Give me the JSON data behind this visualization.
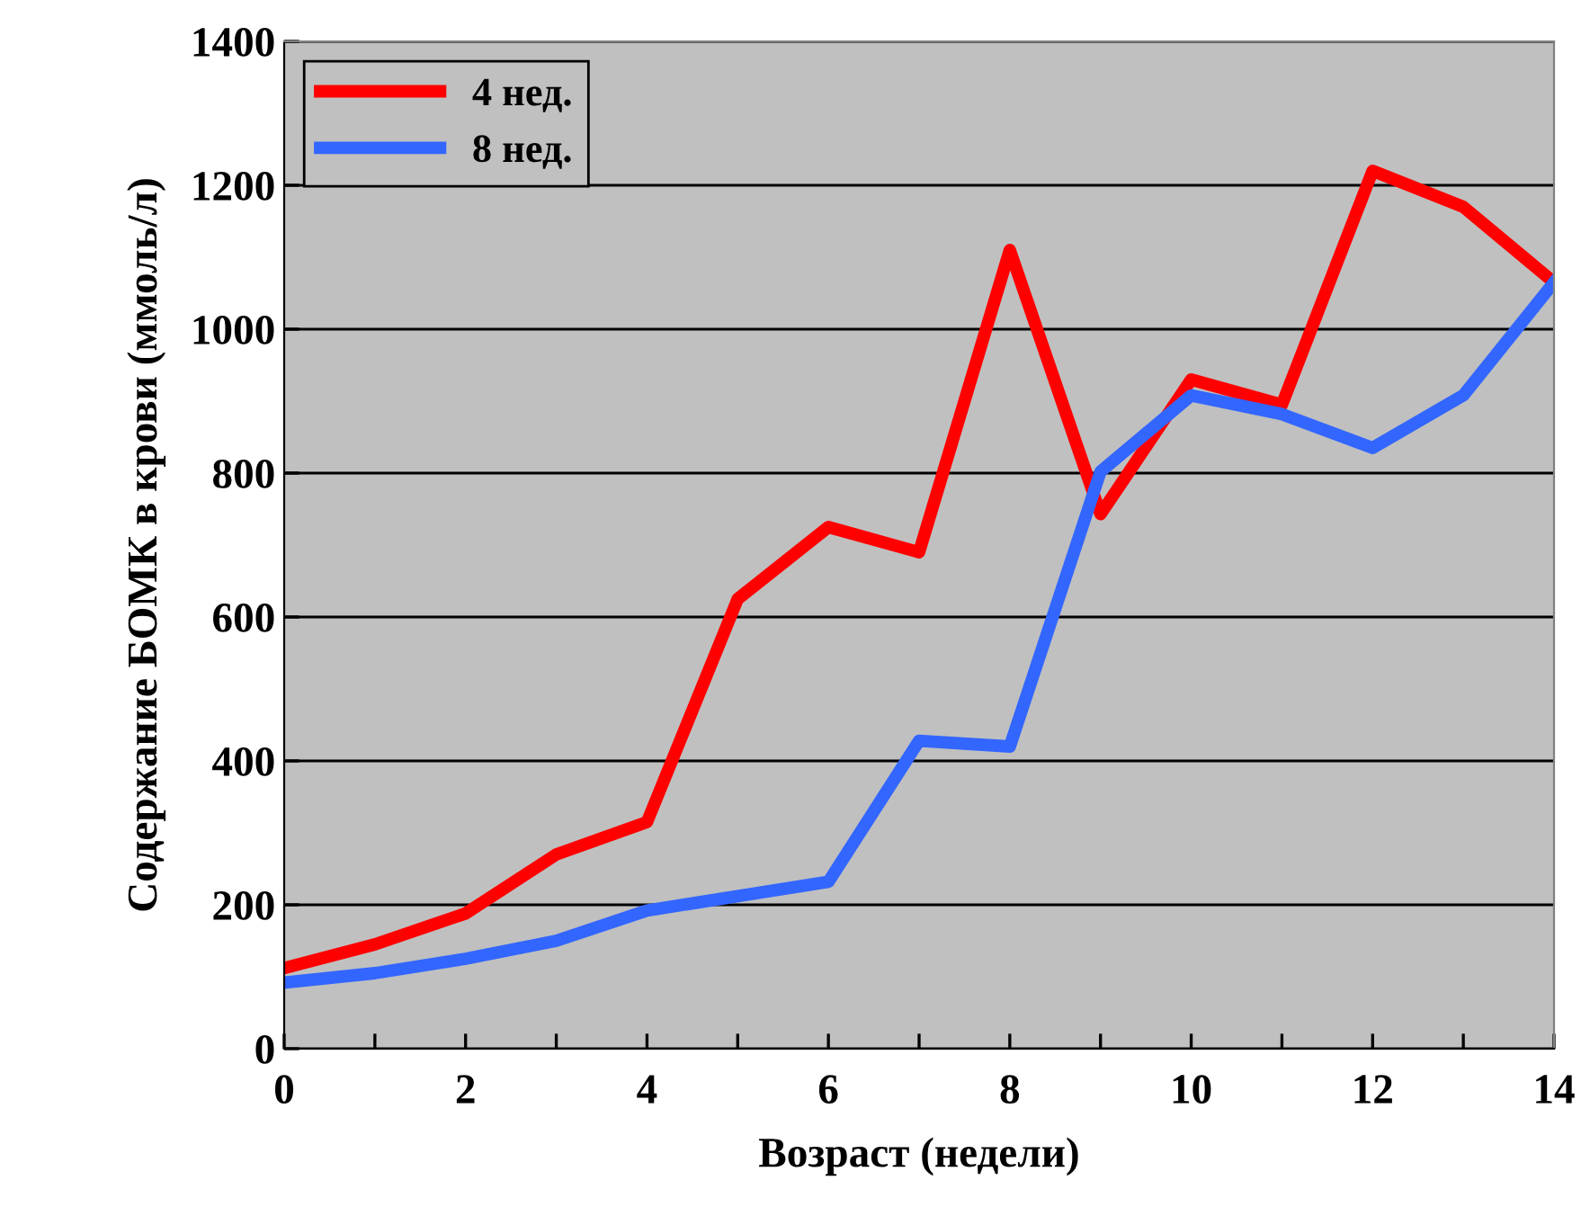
{
  "chart_data": {
    "type": "line",
    "xlabel": "Возраст (недели)",
    "ylabel": "Содержание БОМК в крови (ммоль/л)",
    "x": [
      0,
      1,
      2,
      3,
      4,
      5,
      6,
      7,
      8,
      9,
      10,
      11,
      12,
      13,
      14
    ],
    "series": [
      {
        "name": "4 нед.",
        "color": "#ff0000",
        "values": [
          112,
          145,
          188,
          270,
          315,
          625,
          725,
          690,
          1110,
          743,
          930,
          895,
          1220,
          1170,
          1065
        ]
      },
      {
        "name": "8 нед.",
        "color": "#3366ff",
        "values": [
          92,
          105,
          125,
          150,
          192,
          212,
          232,
          428,
          420,
          802,
          908,
          882,
          835,
          908,
          1065
        ]
      }
    ],
    "xlim": [
      0,
      14
    ],
    "xticks": [
      0,
      {
        "value": 1,
        "label": null
      },
      2,
      {
        "value": 3,
        "label": null
      },
      4,
      {
        "value": 5,
        "label": null
      },
      6,
      {
        "value": 7,
        "label": null
      },
      8,
      {
        "value": 9,
        "label": null
      },
      10,
      {
        "value": 11,
        "label": null
      },
      12,
      {
        "value": 13,
        "label": null
      },
      14
    ],
    "ylim": [
      0,
      1400
    ],
    "yticks": [
      0,
      200,
      400,
      600,
      800,
      1000,
      1200,
      1400
    ],
    "grid": "y",
    "legend": "top left",
    "marker": "none",
    "line_style": "solid"
  }
}
